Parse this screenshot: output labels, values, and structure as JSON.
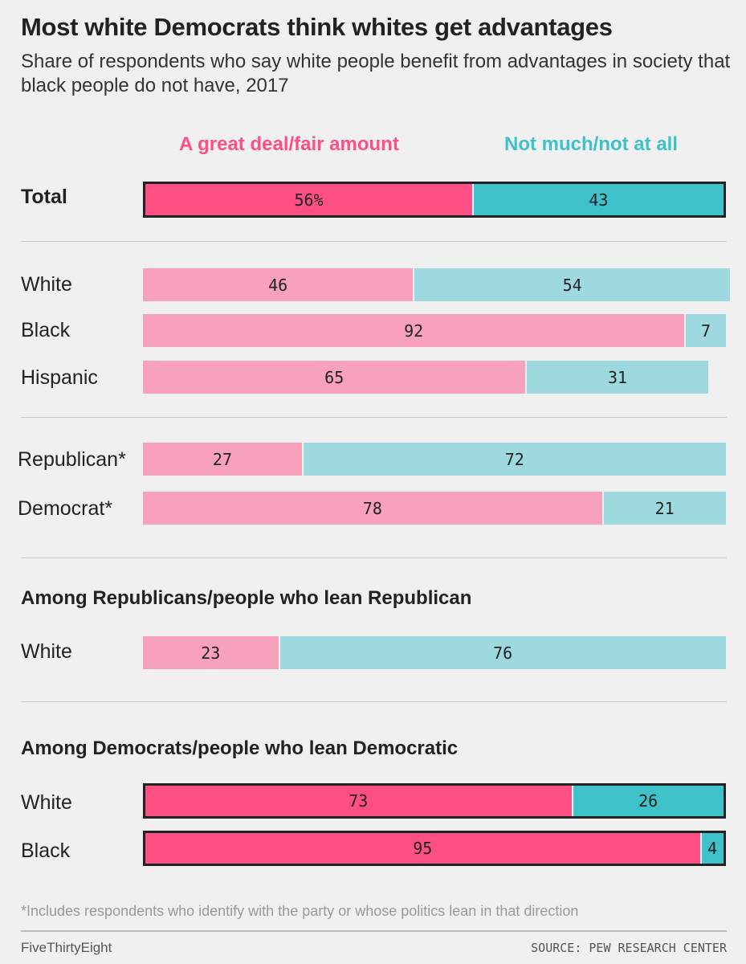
{
  "header": {
    "title": "Most white Democrats think whites get advantages",
    "subtitle": "Share of respondents who say white people benefit from advantages in society that black people do not have, 2017"
  },
  "legend": {
    "agree": "A great deal/fair amount",
    "disagree": "Not much/not at all"
  },
  "colors": {
    "agree_strong": "#fc4f84",
    "agree_light": "#f7a1bc",
    "disagree_strong": "#3fc1ca",
    "disagree_light": "#9dd9df"
  },
  "chart_data": {
    "type": "bar",
    "orientation": "horizontal-stacked",
    "title": "Most white Democrats think whites get advantages",
    "subtitle": "Share of respondents who say white people benefit from advantages in society that black people do not have, 2017",
    "series": [
      {
        "name": "A great deal/fair amount"
      },
      {
        "name": "Not much/not at all"
      }
    ],
    "xlim": [
      0,
      100
    ],
    "groups": [
      {
        "heading": "",
        "rows": [
          {
            "label": "Total",
            "agree": 56,
            "disagree": 43,
            "agree_text": "56%",
            "disagree_text": "43",
            "highlight": true
          }
        ]
      },
      {
        "heading": "",
        "rows": [
          {
            "label": "White",
            "agree": 46,
            "disagree": 54,
            "agree_text": "46",
            "disagree_text": "54",
            "highlight": false
          },
          {
            "label": "Black",
            "agree": 92,
            "disagree": 7,
            "agree_text": "92",
            "disagree_text": "7",
            "highlight": false
          },
          {
            "label": "Hispanic",
            "agree": 65,
            "disagree": 31,
            "agree_text": "65",
            "disagree_text": "31",
            "highlight": false
          }
        ]
      },
      {
        "heading": "",
        "rows": [
          {
            "label": "Republican*",
            "agree": 27,
            "disagree": 72,
            "agree_text": "27",
            "disagree_text": "72",
            "highlight": false
          },
          {
            "label": "Democrat*",
            "agree": 78,
            "disagree": 21,
            "agree_text": "78",
            "disagree_text": "21",
            "highlight": false
          }
        ]
      },
      {
        "heading": "Among Republicans/people who lean Republican",
        "rows": [
          {
            "label": "White",
            "agree": 23,
            "disagree": 76,
            "agree_text": "23",
            "disagree_text": "76",
            "highlight": false
          }
        ]
      },
      {
        "heading": "Among Democrats/people who lean Democratic",
        "rows": [
          {
            "label": "White",
            "agree": 73,
            "disagree": 26,
            "agree_text": "73",
            "disagree_text": "26",
            "highlight": true
          },
          {
            "label": "Black",
            "agree": 95,
            "disagree": 4,
            "agree_text": "95",
            "disagree_text": "4",
            "highlight": true
          }
        ]
      }
    ]
  },
  "footer": {
    "footnote": "*Includes respondents who identify with the party or whose politics lean in that direction",
    "brand": "FiveThirtyEight",
    "source": "SOURCE: PEW RESEARCH CENTER"
  }
}
